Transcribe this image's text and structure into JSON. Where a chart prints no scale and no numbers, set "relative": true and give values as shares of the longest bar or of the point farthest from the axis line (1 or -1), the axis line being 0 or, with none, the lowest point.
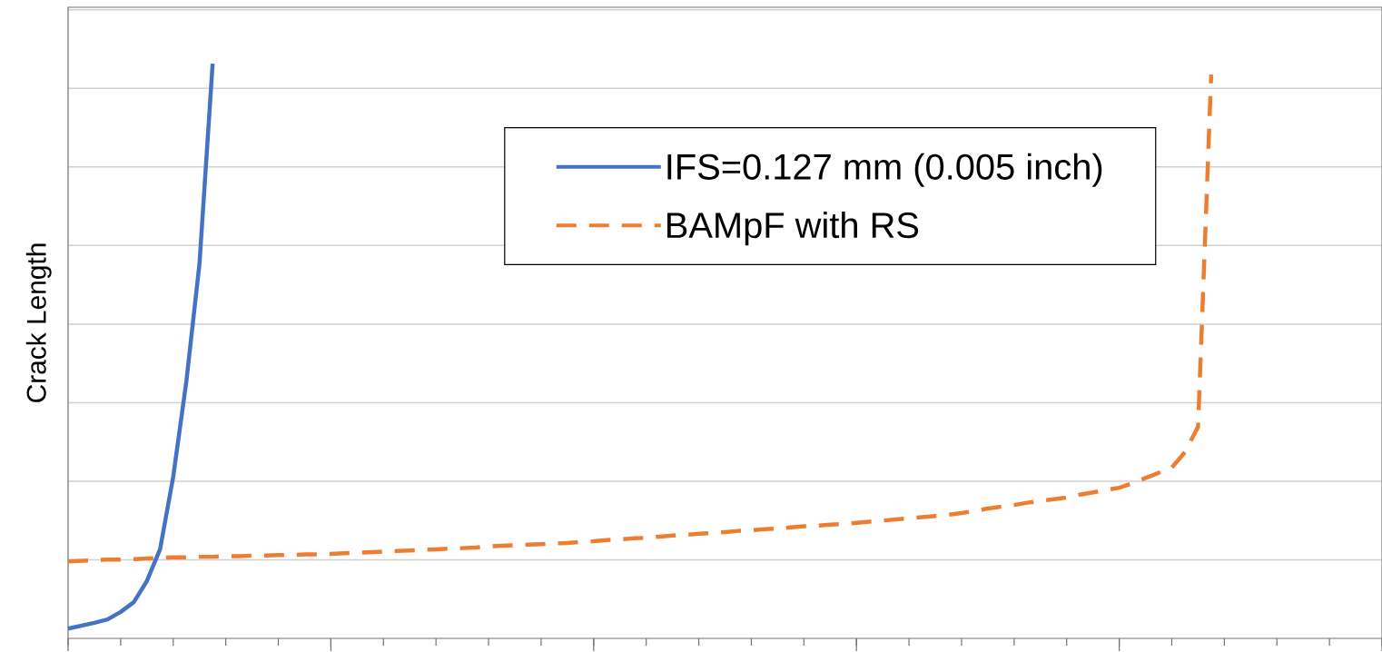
{
  "chart_data": {
    "type": "line",
    "ylabel": "Crack Length",
    "relative": true,
    "grid": "y",
    "legend": "top",
    "marker": "none",
    "categories": [
      null,
      null,
      null,
      null,
      null,
      null,
      null,
      null,
      null,
      null,
      null,
      null,
      null,
      null,
      null,
      null,
      null,
      null,
      null,
      null,
      null,
      null,
      null,
      null,
      null,
      null,
      null,
      null,
      null,
      null,
      null,
      null,
      null,
      null,
      null,
      null,
      null,
      null,
      null,
      null,
      null,
      null,
      null,
      null,
      null,
      null,
      null,
      null,
      null,
      null,
      null,
      null,
      null,
      null,
      null,
      null,
      null,
      null,
      null,
      null,
      null,
      null,
      null,
      null,
      null,
      null,
      null,
      null,
      null,
      null,
      null,
      null,
      null,
      null,
      null,
      null,
      null,
      null,
      null,
      null,
      null,
      null,
      null,
      null,
      null,
      null,
      null,
      null,
      null,
      null,
      null,
      null,
      null,
      null,
      null,
      null,
      null,
      null,
      null,
      null,
      null
    ],
    "series": [
      {
        "name": "IFS=0.127 mm (0.005 inch)",
        "color": "#4472c4",
        "line_style": "solid",
        "values": [
          0.017,
          0.022,
          0.027,
          0.033,
          0.046,
          0.063,
          0.1,
          0.155,
          0.281,
          0.447,
          0.652,
          1.0,
          null,
          null,
          null,
          null,
          null,
          null,
          null,
          null,
          null,
          null,
          null,
          null,
          null,
          null,
          null,
          null,
          null,
          null,
          null,
          null,
          null,
          null,
          null,
          null,
          null,
          null,
          null,
          null,
          null,
          null,
          null,
          null,
          null,
          null,
          null,
          null,
          null,
          null,
          null,
          null,
          null,
          null,
          null,
          null,
          null,
          null,
          null,
          null,
          null,
          null,
          null,
          null,
          null,
          null,
          null,
          null,
          null,
          null,
          null,
          null,
          null,
          null,
          null,
          null,
          null,
          null,
          null,
          null,
          null,
          null,
          null,
          null,
          null,
          null,
          null,
          null,
          null,
          null,
          null,
          null,
          null,
          null,
          null,
          null,
          null,
          null,
          null,
          null,
          null
        ]
      },
      {
        "name": "BAMpF with RS",
        "color": "#ed7d31",
        "line_style": "dashed",
        "values": [
          0.134,
          0.135,
          0.136,
          0.137,
          0.137,
          0.138,
          0.139,
          0.14,
          0.141,
          0.141,
          0.142,
          0.142,
          0.143,
          0.143,
          0.144,
          0.144,
          0.145,
          0.145,
          0.146,
          0.146,
          0.147,
          0.148,
          0.149,
          0.15,
          0.151,
          0.152,
          0.153,
          0.154,
          0.155,
          0.156,
          0.157,
          0.158,
          0.16,
          0.161,
          0.162,
          0.163,
          0.164,
          0.165,
          0.166,
          0.168,
          0.169,
          0.171,
          0.172,
          0.174,
          0.175,
          0.177,
          0.179,
          0.18,
          0.182,
          0.183,
          0.185,
          0.187,
          0.188,
          0.19,
          0.191,
          0.193,
          0.195,
          0.196,
          0.198,
          0.199,
          0.201,
          0.203,
          0.205,
          0.207,
          0.209,
          0.211,
          0.213,
          0.215,
          0.218,
          0.222,
          0.226,
          0.229,
          0.232,
          0.236,
          0.239,
          0.242,
          0.245,
          0.25,
          0.254,
          0.258,
          0.262,
          0.27,
          0.279,
          0.288,
          0.297,
          0.324,
          0.368,
          0.981,
          null,
          null,
          null,
          null,
          null,
          null,
          null,
          null,
          null,
          null,
          null,
          null,
          null
        ]
      }
    ]
  }
}
